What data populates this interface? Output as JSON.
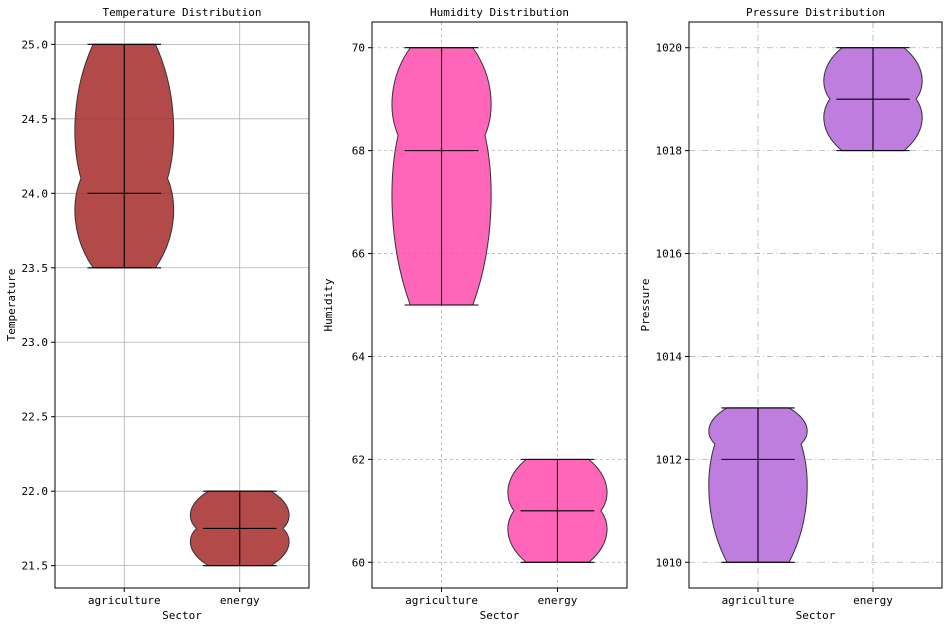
{
  "xlabel": "Sector",
  "categories": [
    "agriculture",
    "energy"
  ],
  "chart_data": [
    {
      "type": "violin",
      "title": "Temperature Distribution",
      "xlabel": "Sector",
      "ylabel": "Temperature",
      "categories": [
        "agriculture",
        "energy"
      ],
      "color": "#a52a2a",
      "grid_style": "solid",
      "ylim": [
        21.35,
        25.15
      ],
      "yticks": [
        21.5,
        22.0,
        22.5,
        23.0,
        23.5,
        24.0,
        24.5,
        25.0
      ],
      "ytick_labels": [
        "21.5",
        "22.0",
        "22.5",
        "23.0",
        "23.5",
        "24.0",
        "24.5",
        "25.0"
      ],
      "series": [
        {
          "category": "agriculture",
          "min": 23.5,
          "median": 24.0,
          "max": 25.0,
          "density_peak": 24.1
        },
        {
          "category": "energy",
          "min": 21.5,
          "median": 21.75,
          "max": 22.0,
          "density_peak": 21.75
        }
      ]
    },
    {
      "type": "violin",
      "title": "Humidity Distribution",
      "xlabel": "Sector",
      "ylabel": "Humidity",
      "categories": [
        "agriculture",
        "energy"
      ],
      "color": "#ff4aad",
      "grid_style": "dashed",
      "ylim": [
        59.5,
        70.5
      ],
      "yticks": [
        60,
        62,
        64,
        66,
        68,
        70
      ],
      "ytick_labels": [
        "60",
        "62",
        "64",
        "66",
        "68",
        "70"
      ],
      "series": [
        {
          "category": "agriculture",
          "min": 65,
          "median": 68,
          "max": 70,
          "density_peak": 68.3
        },
        {
          "category": "energy",
          "min": 60,
          "median": 61,
          "max": 62,
          "density_peak": 61
        }
      ]
    },
    {
      "type": "violin",
      "title": "Pressure Distribution",
      "xlabel": "Sector",
      "ylabel": "Pressure",
      "categories": [
        "agriculture",
        "energy"
      ],
      "color": "#b366d9",
      "grid_style": "dashdot",
      "ylim": [
        1009.5,
        1020.5
      ],
      "yticks": [
        1010,
        1012,
        1014,
        1016,
        1018,
        1020
      ],
      "ytick_labels": [
        "1010",
        "1012",
        "1014",
        "1016",
        "1018",
        "1020"
      ],
      "series": [
        {
          "category": "agriculture",
          "min": 1010,
          "median": 1012,
          "max": 1013,
          "density_peak": 1012.3
        },
        {
          "category": "energy",
          "min": 1018,
          "median": 1019,
          "max": 1020,
          "density_peak": 1019
        }
      ]
    }
  ]
}
